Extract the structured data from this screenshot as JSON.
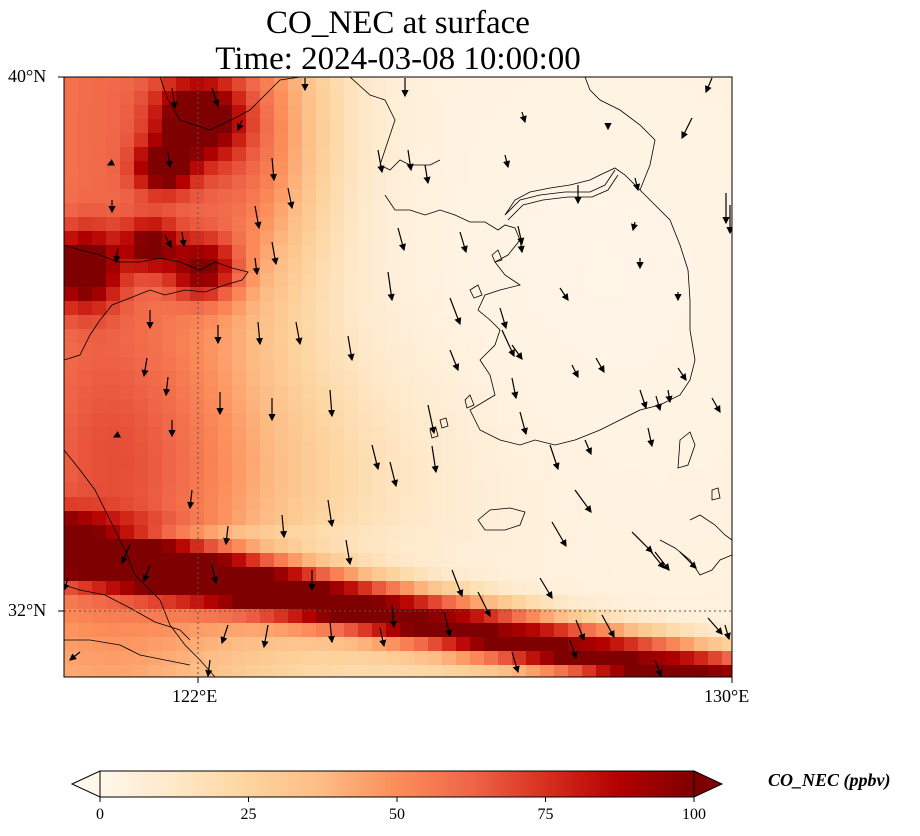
{
  "map": {
    "title_line1": "CO_NEC at surface",
    "title_line2": "Time: 2024-03-08 10:00:00",
    "lat_labels": [
      "40°N",
      "32°N"
    ],
    "lon_labels": [
      "122°E",
      "130°E"
    ],
    "extent": {
      "lon_min": 120,
      "lon_max": 130,
      "lat_min": 31,
      "lat_max": 40
    },
    "gridlines": {
      "lon": [
        122
      ],
      "lat": [
        32
      ],
      "style": "dotted"
    },
    "field": "CO_NEC",
    "features": [
      "coastlines",
      "wind-vectors",
      "gridlines"
    ]
  },
  "colorbar": {
    "label": "CO_NEC (ppbv)",
    "ticks": [
      "0",
      "25",
      "50",
      "75",
      "100"
    ],
    "min": 0,
    "max": 100,
    "colormap": "OrRd",
    "extend": "both",
    "colors": [
      "#fff7ec",
      "#fee8c8",
      "#fdd49e",
      "#fdbb84",
      "#fc8d59",
      "#ef6548",
      "#d7301f",
      "#b30000",
      "#7f0000"
    ]
  }
}
